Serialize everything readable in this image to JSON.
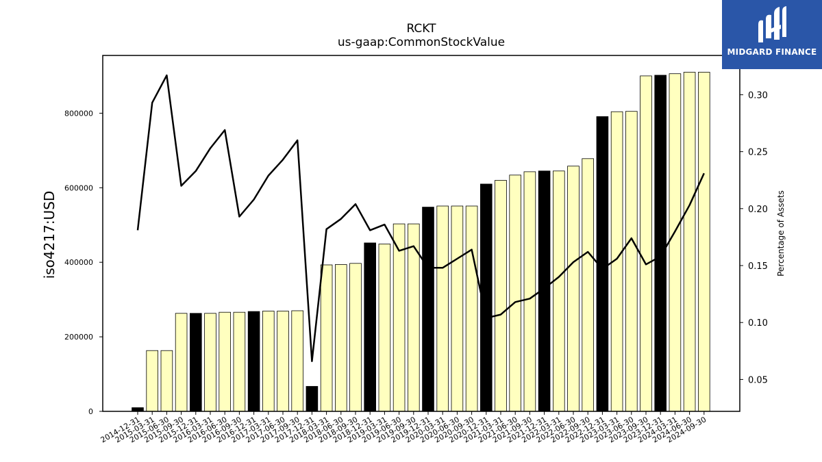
{
  "chart_data": {
    "type": "bar",
    "title": "RCKT",
    "subtitle": "us-gaap:CommonStockValue",
    "ylabel": "iso4217:USD",
    "y2label": "Percentage of Assets",
    "ylim": [
      0,
      955000
    ],
    "y2lim": [
      0.022,
      0.3345
    ],
    "yticks": [
      0,
      200000,
      400000,
      600000,
      800000
    ],
    "y2ticks": [
      "0.05",
      "0.10",
      "0.15",
      "0.20",
      "0.25",
      "0.30"
    ],
    "categories": [
      "2014-12-31",
      "2015-03-31",
      "2015-06-30",
      "2015-09-30",
      "2015-12-31",
      "2016-03-31",
      "2016-06-30",
      "2016-09-30",
      "2016-12-31",
      "2017-03-31",
      "2017-06-30",
      "2017-09-30",
      "2017-12-31",
      "2018-03-31",
      "2018-06-30",
      "2018-09-30",
      "2018-12-31",
      "2019-03-31",
      "2019-06-30",
      "2019-09-30",
      "2019-12-31",
      "2020-03-31",
      "2020-06-30",
      "2020-09-30",
      "2020-12-31",
      "2021-03-31",
      "2021-06-30",
      "2021-09-30",
      "2021-12-31",
      "2022-03-31",
      "2022-06-30",
      "2022-09-30",
      "2022-12-31",
      "2023-03-31",
      "2023-06-30",
      "2023-09-30",
      "2023-12-31",
      "2024-03-31",
      "2024-06-30",
      "2024-09-30"
    ],
    "series": [
      {
        "type": "bar",
        "values": [
          10000,
          163000,
          163000,
          263000,
          263000,
          263000,
          266000,
          266000,
          268000,
          269000,
          269000,
          270000,
          67000,
          393000,
          394000,
          397000,
          452000,
          449000,
          503000,
          503000,
          548000,
          551000,
          551000,
          551000,
          610000,
          620000,
          634000,
          643000,
          645000,
          645000,
          658000,
          678000,
          791000,
          804000,
          805000,
          900000,
          902000,
          906000,
          910000,
          910000
        ],
        "highlight": [
          true,
          false,
          false,
          false,
          true,
          false,
          false,
          false,
          true,
          false,
          false,
          false,
          true,
          false,
          false,
          false,
          true,
          false,
          false,
          false,
          true,
          false,
          false,
          false,
          true,
          false,
          false,
          false,
          true,
          false,
          false,
          false,
          true,
          false,
          false,
          false,
          true,
          false,
          false,
          false
        ]
      },
      {
        "type": "line",
        "axis": "right",
        "values": [
          0.181,
          0.293,
          0.317,
          0.22,
          0.233,
          0.253,
          0.269,
          0.193,
          0.208,
          0.229,
          0.243,
          0.26,
          0.066,
          0.182,
          0.191,
          0.204,
          0.181,
          0.186,
          0.163,
          0.167,
          0.148,
          0.148,
          0.156,
          0.164,
          0.104,
          0.107,
          0.118,
          0.121,
          0.13,
          0.14,
          0.153,
          0.162,
          0.147,
          0.156,
          0.174,
          0.151,
          0.158,
          0.18,
          0.203,
          0.231
        ]
      }
    ],
    "colors": {
      "bar": "#ffffbf",
      "bar_highlight": "#000000",
      "line": "#000000"
    },
    "grid": false
  },
  "logo": {
    "text": "MIDGARD FINANCE"
  }
}
